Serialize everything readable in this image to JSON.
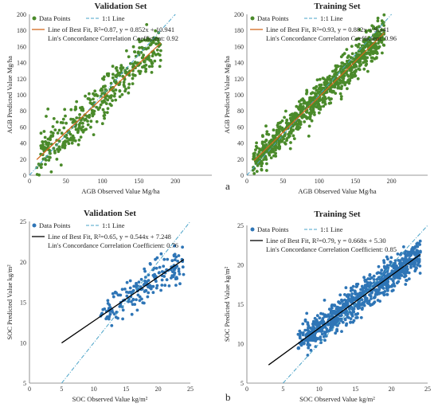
{
  "figure": {
    "panel_letters": [
      "a",
      "b"
    ]
  },
  "chart_data": [
    {
      "type": "scatter",
      "title": "Validation Set",
      "xlabel": "AGB Observed Value Mg/ha",
      "ylabel": "AGB Predicted Value Mg/ha",
      "xlim": [
        0,
        250
      ],
      "ylim": [
        0,
        200
      ],
      "xticks": [
        0,
        50,
        100,
        150,
        200
      ],
      "yticks": [
        0,
        20,
        40,
        60,
        80,
        100,
        120,
        140,
        160,
        180,
        200
      ],
      "legend": {
        "points": "Data Points",
        "identity": "1:1 Line",
        "fit": "Line of Best Fit, R²=0.87, y = 0.852x + 10.941",
        "ccc": "Lin's Concordance Correlation Coefficient: 0.92"
      },
      "fit": {
        "slope": 0.852,
        "intercept": 10.941,
        "x_range": [
          10,
          180
        ]
      },
      "point_color": "#4a8a2a",
      "fit_color": "#d2691e",
      "identity_color": "#4aa3c8",
      "sample": {
        "n": 420,
        "x_range": [
          10,
          180
        ],
        "noise": 14,
        "seed": 11
      }
    },
    {
      "type": "scatter",
      "title": "Training Set",
      "xlabel": "AGB Observed Value Mg/ha",
      "ylabel": "AGB Predicted Value Mg/ha",
      "xlim": [
        0,
        250
      ],
      "ylim": [
        0,
        200
      ],
      "xticks": [
        0,
        50,
        100,
        150,
        200
      ],
      "yticks": [
        0,
        20,
        40,
        60,
        80,
        100,
        120,
        140,
        160,
        180,
        200
      ],
      "legend": {
        "points": "Data Points",
        "identity": "1:1 Line",
        "fit": "Line of Best Fit, R²=0.93, y = 0.882x + 9.341",
        "ccc": "Lin's Concordance Correlation Coefficient: 0.96"
      },
      "fit": {
        "slope": 0.882,
        "intercept": 9.341,
        "x_range": [
          10,
          190
        ]
      },
      "point_color": "#4a8a2a",
      "fit_color": "#d2691e",
      "identity_color": "#4aa3c8",
      "sample": {
        "n": 900,
        "x_range": [
          8,
          190
        ],
        "noise": 10,
        "seed": 23
      }
    },
    {
      "type": "scatter",
      "title": "Validation Set",
      "xlabel": "SOC Observed Value kg/m²",
      "ylabel": "SOC Predicted Value kg/m²",
      "xlim": [
        0,
        25
      ],
      "ylim": [
        5,
        25
      ],
      "xticks": [
        0,
        5,
        10,
        15,
        20,
        25
      ],
      "yticks": [
        5,
        10,
        15,
        20,
        25
      ],
      "legend": {
        "points": "Data Points",
        "identity": "1:1 Line",
        "fit": "Line of Best Fit,  R²=0.65, y = 0.544x + 7.248",
        "ccc": "Lin's Concordance Correlation Coefficient: 0.76"
      },
      "fit": {
        "slope": 0.544,
        "intercept": 7.248,
        "x_range": [
          5,
          24
        ]
      },
      "point_color": "#2e75b6",
      "fit_color": "#000000",
      "identity_color": "#4aa3c8",
      "sample": {
        "n": 190,
        "x_range": [
          11,
          24
        ],
        "noise": 1.1,
        "seed": 5
      }
    },
    {
      "type": "scatter",
      "title": "Training Set",
      "xlabel": "SOC Observed Value kg/m²",
      "ylabel": "SOC Predicted Value kg/m²",
      "xlim": [
        0,
        25
      ],
      "ylim": [
        5,
        25
      ],
      "xticks": [
        0,
        5,
        10,
        15,
        20,
        25
      ],
      "yticks": [
        5,
        10,
        15,
        20,
        25
      ],
      "legend": {
        "points": "Data Points",
        "identity": "1:1 Line",
        "fit": "Line of Best Fit, R²=0.79, y = 0.668x + 5.30",
        "ccc": "Lin's Concordance Correlation Coefficient: 0.85"
      },
      "fit": {
        "slope": 0.668,
        "intercept": 5.3,
        "x_range": [
          3,
          24
        ]
      },
      "point_color": "#2e75b6",
      "fit_color": "#000000",
      "identity_color": "#4aa3c8",
      "sample": {
        "n": 850,
        "x_range": [
          7,
          24
        ],
        "noise": 1.0,
        "seed": 37
      }
    }
  ]
}
